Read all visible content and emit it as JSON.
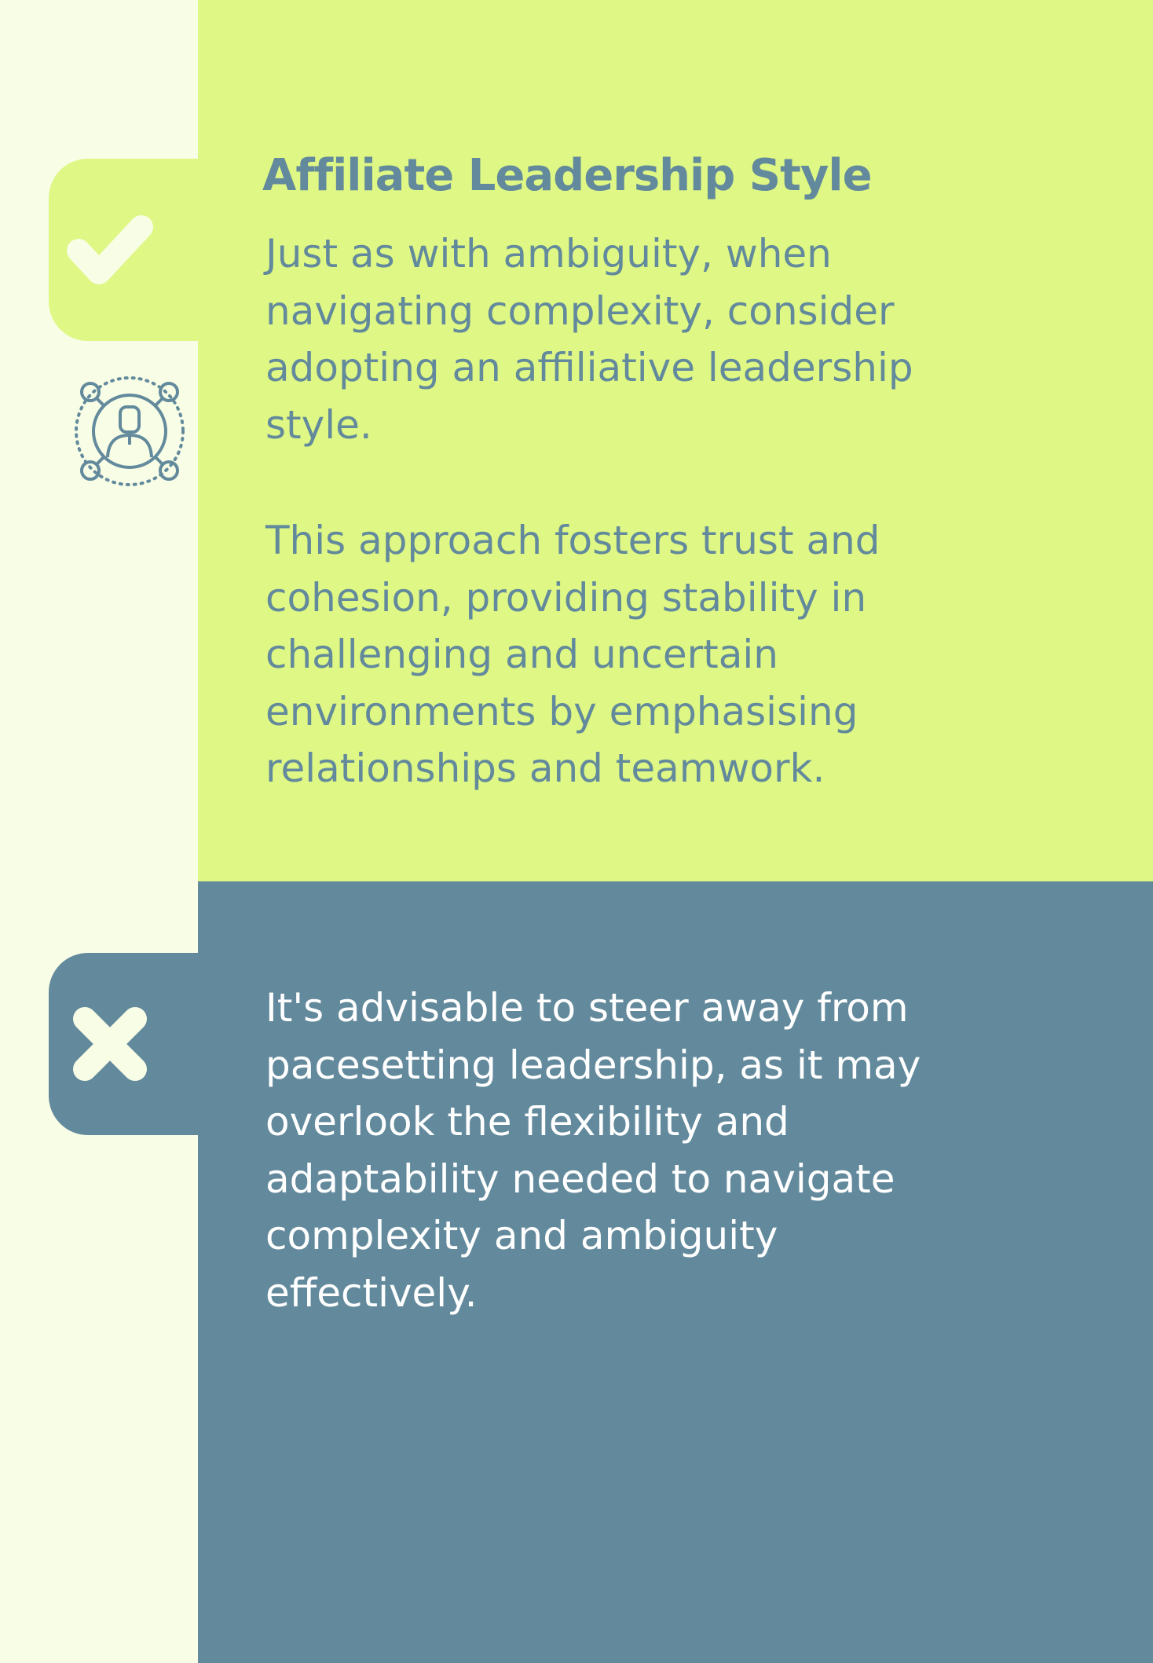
{
  "colors": {
    "background": "#f8fde6",
    "accent_green": "#dff784",
    "accent_blue": "#638a9c",
    "text_light": "#ffffff"
  },
  "do_section": {
    "icon": "check-icon",
    "title": "Affiliate Leadership Style",
    "paragraph_1": "Just as with ambiguity, when\nnavigating complexity, consider\nadopting an affiliative leadership\nstyle.",
    "paragraph_2": "This approach fosters trust and\ncohesion, providing stability in\nchallenging and uncertain\nenvironments by emphasising\nrelationships and teamwork.",
    "side_icon": "team-network-icon"
  },
  "dont_section": {
    "icon": "cross-icon",
    "paragraph": "It's advisable to steer away from\npacesetting leadership, as it may\noverlook the flexibility and\nadaptability needed to navigate\ncomplexity and ambiguity\neffectively."
  }
}
